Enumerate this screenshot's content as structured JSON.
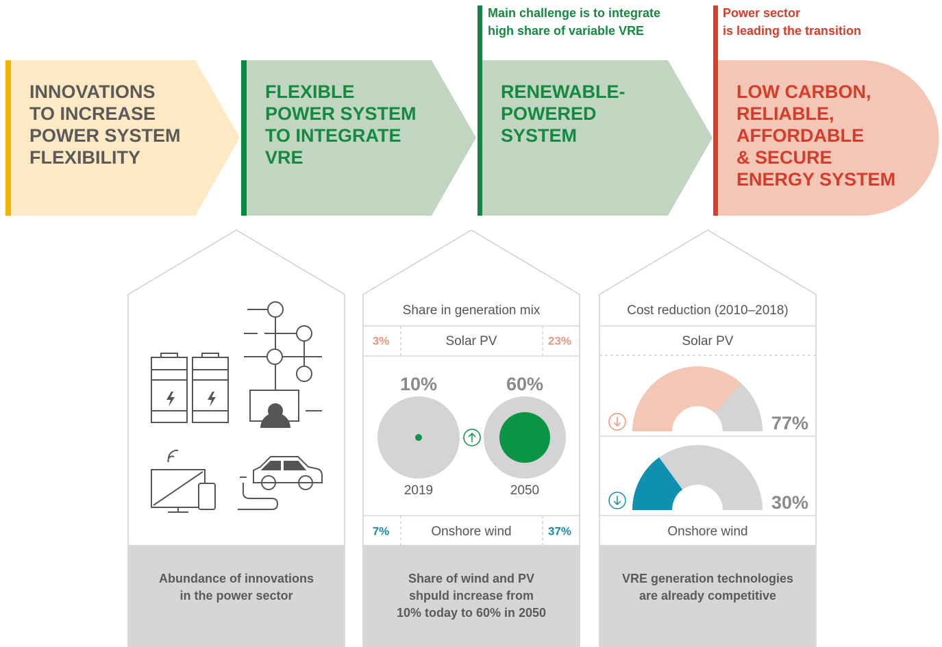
{
  "stages": [
    {
      "lines": [
        "INNOVATIONS",
        "TO INCREASE",
        "POWER SYSTEM",
        "FLEXIBILITY"
      ]
    },
    {
      "lines": [
        "FLEXIBLE",
        "POWER SYSTEM",
        "TO INTEGRATE",
        "VRE"
      ]
    },
    {
      "lines": [
        "RENEWABLE-",
        "POWERED",
        "SYSTEM"
      ]
    },
    {
      "lines": [
        "LOW CARBON,",
        "RELIABLE,",
        "AFFORDABLE",
        "& SECURE",
        "ENERGY SYSTEM"
      ]
    }
  ],
  "notes": [
    {
      "lines": [
        "Main challenge is to integrate",
        "high share of variable VRE"
      ]
    },
    {
      "lines": [
        "Power sector",
        "is leading the transition"
      ]
    }
  ],
  "panels": [
    {
      "caption": [
        "Abundance of innovations",
        "in the power sector"
      ]
    },
    {
      "heading": "Share in generation mix",
      "solar": {
        "name": "Solar PV",
        "from": "3%",
        "to": "23%"
      },
      "share": [
        {
          "value": "10%",
          "year": "2019"
        },
        {
          "value": "60%",
          "year": "2050"
        }
      ],
      "wind": {
        "name": "Onshore wind",
        "from": "7%",
        "to": "37%"
      },
      "caption": [
        "Share of wind and PV",
        "shpuld increase from",
        "10% today to 60% in 2050"
      ]
    },
    {
      "heading": "Cost reduction (2010–2018)",
      "solar": {
        "name": "Solar PV",
        "reduction": "77%"
      },
      "wind": {
        "name": "Onshore wind",
        "reduction": "30%"
      },
      "caption": [
        "VRE generation technologies",
        "are already competitive"
      ]
    }
  ]
}
